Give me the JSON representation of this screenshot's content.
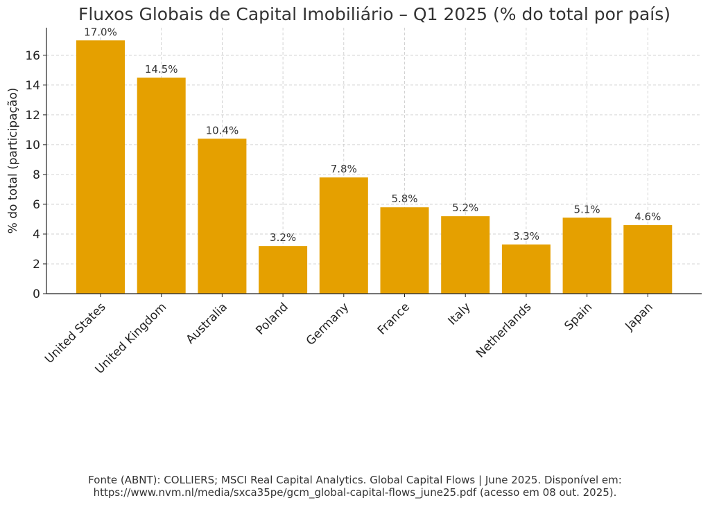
{
  "chart_data": {
    "type": "bar",
    "title": "Fluxos Globais de Capital Imobiliário – Q1 2025 (% do total por país)",
    "xlabel": "",
    "ylabel": "% do total (participação)",
    "categories": [
      "United States",
      "United Kingdom",
      "Australia",
      "Poland",
      "Germany",
      "France",
      "Italy",
      "Netherlands",
      "Spain",
      "Japan"
    ],
    "values": [
      17.0,
      14.5,
      10.4,
      3.2,
      7.8,
      5.8,
      5.2,
      3.3,
      5.1,
      4.6
    ],
    "data_labels": [
      "17.0%",
      "14.5%",
      "10.4%",
      "3.2%",
      "7.8%",
      "5.8%",
      "5.2%",
      "3.3%",
      "5.1%",
      "4.6%"
    ],
    "ylim": [
      0,
      17.85
    ],
    "yticks": [
      0,
      2,
      4,
      6,
      8,
      10,
      12,
      14,
      16
    ],
    "grid": true,
    "bar_color": "#E5A000"
  },
  "footer": {
    "line1": "Fonte (ABNT): COLLIERS; MSCI Real Capital Analytics. Global Capital Flows | June 2025. Disponível em:",
    "line2": "https://www.nvm.nl/media/sxca35pe/gcm_global-capital-flows_june25.pdf (acesso em 08 out. 2025)."
  }
}
